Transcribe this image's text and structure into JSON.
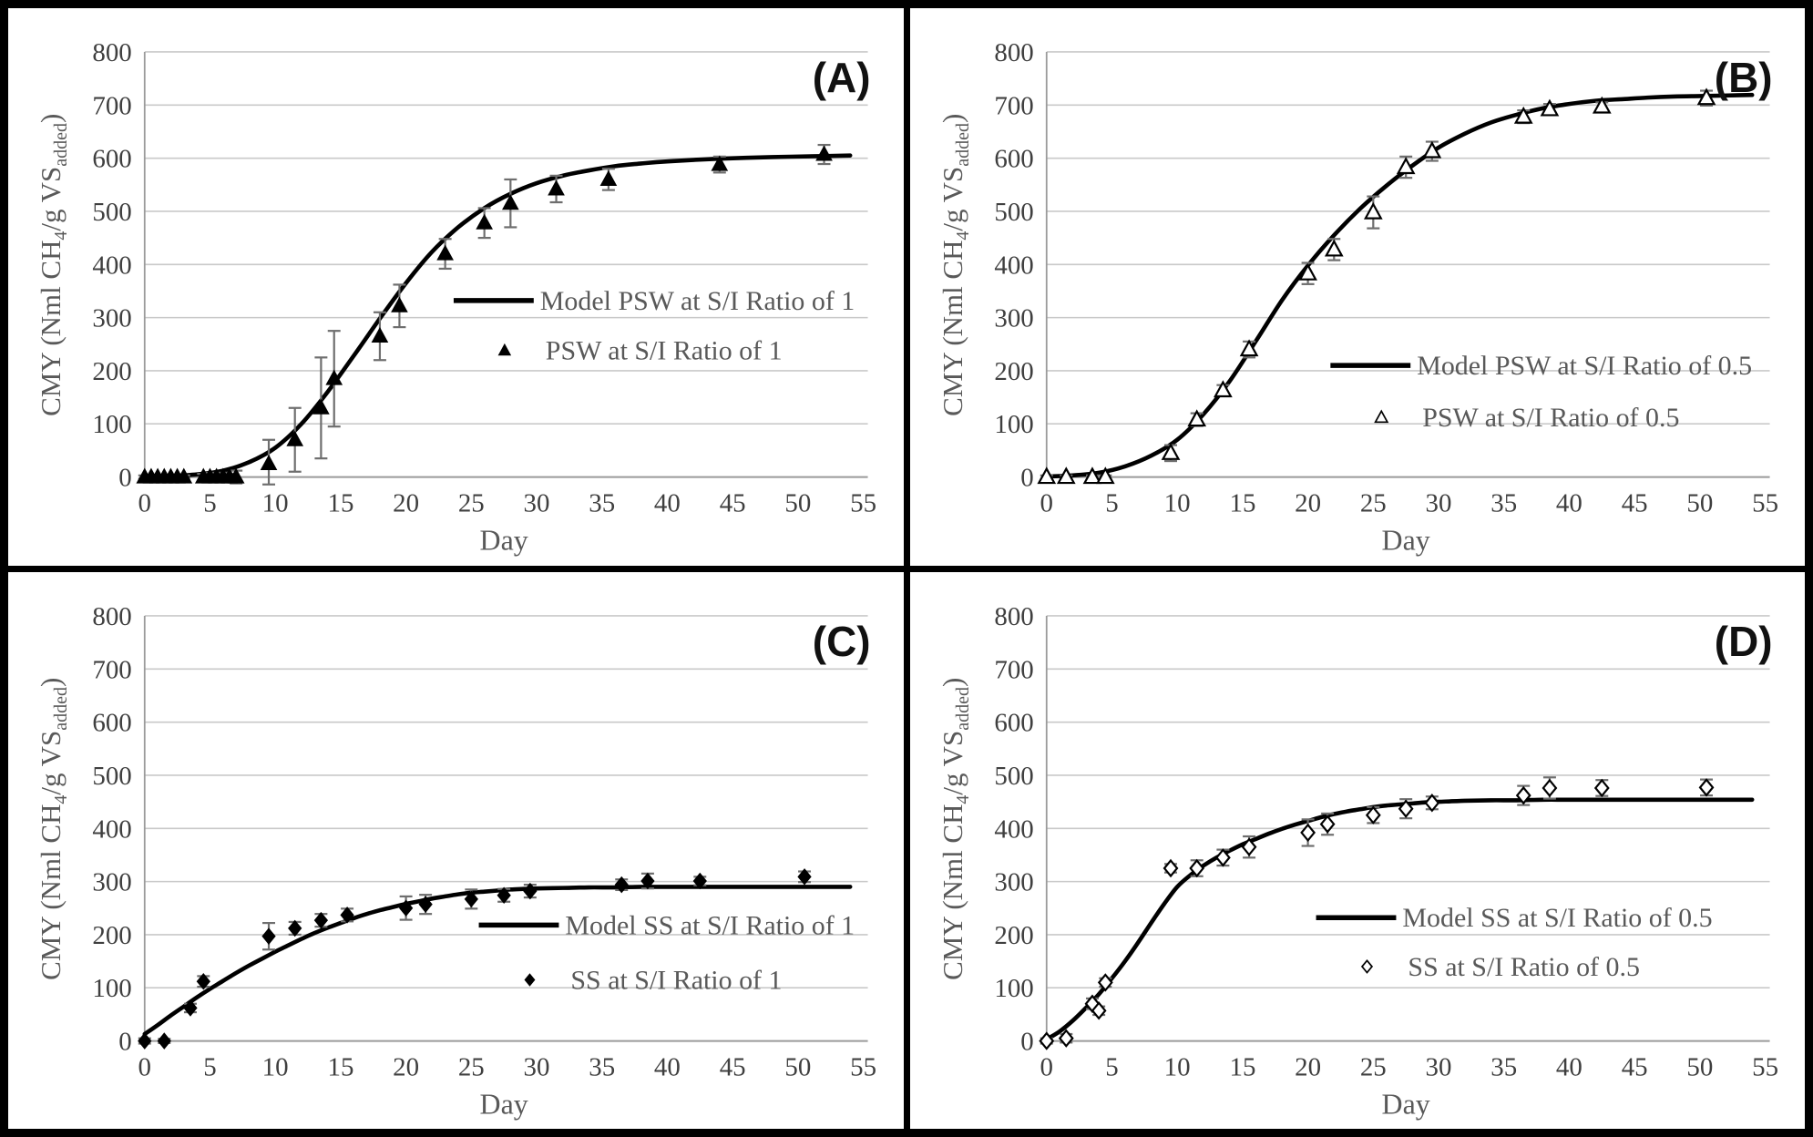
{
  "figure": {
    "background": "#ffffff",
    "border_color": "#000000",
    "axis_color": "#9a9a9a",
    "gridline_color": "#c9c9c9",
    "tick_label_color": "#3f3f3f",
    "legend_text_color": "#595959",
    "errorbar_color": "#6e6e6e",
    "series_color": "#000000",
    "x_ticks": [
      0,
      5,
      10,
      15,
      20,
      25,
      30,
      35,
      40,
      45,
      50,
      55
    ],
    "y_ticks": [
      0,
      100,
      200,
      300,
      400,
      500,
      600,
      700,
      800
    ],
    "xlabel": "Day",
    "ylabel_parts": [
      [
        "CMY (Nml CH",
        0
      ],
      [
        "4",
        1
      ],
      [
        "/g VS",
        0
      ],
      [
        "added",
        1
      ],
      [
        ")",
        0
      ]
    ]
  },
  "chart_data": [
    {
      "type": "line",
      "panel_label": "(A)",
      "title": "PSW at S/I Ratio of 1",
      "xlabel": "Day",
      "ylabel": "CMY (Nml CH4/g VSadded)",
      "xlim": [
        0,
        55
      ],
      "ylim": [
        0,
        800
      ],
      "grid": "horizontal",
      "marker": "triangle-filled",
      "legend": [
        {
          "sample": "line",
          "label": "Model PSW at S/I Ratio of 1"
        },
        {
          "sample": "marker",
          "label": "PSW at S/I Ratio of 1"
        }
      ],
      "legend_pos": {
        "fx": 0.43,
        "v1": 332,
        "v2": 238
      },
      "model_curve": [
        [
          0,
          1
        ],
        [
          2,
          2
        ],
        [
          4,
          5
        ],
        [
          6,
          12
        ],
        [
          8,
          28
        ],
        [
          10,
          55
        ],
        [
          12,
          100
        ],
        [
          14,
          160
        ],
        [
          16,
          228
        ],
        [
          18,
          298
        ],
        [
          20,
          365
        ],
        [
          22,
          424
        ],
        [
          24,
          470
        ],
        [
          26,
          506
        ],
        [
          28,
          533
        ],
        [
          30,
          553
        ],
        [
          32,
          567
        ],
        [
          34,
          577
        ],
        [
          36,
          585
        ],
        [
          38,
          590
        ],
        [
          40,
          594
        ],
        [
          44,
          599
        ],
        [
          48,
          602
        ],
        [
          52,
          604
        ],
        [
          54,
          605
        ]
      ],
      "points": [
        [
          0,
          0,
          3
        ],
        [
          0.5,
          0,
          3
        ],
        [
          1,
          0,
          3
        ],
        [
          1.5,
          0,
          3
        ],
        [
          2,
          0,
          3
        ],
        [
          2.5,
          0,
          3
        ],
        [
          3,
          0,
          3
        ],
        [
          4.5,
          0,
          6
        ],
        [
          5,
          0,
          8
        ],
        [
          5.5,
          0,
          6
        ],
        [
          6,
          0,
          8
        ],
        [
          6.5,
          0,
          6
        ],
        [
          7,
          0,
          12
        ],
        [
          9.5,
          25,
          45
        ],
        [
          11.5,
          70,
          60
        ],
        [
          13.5,
          130,
          95
        ],
        [
          14.5,
          185,
          90
        ],
        [
          18,
          265,
          45
        ],
        [
          19.5,
          322,
          40
        ],
        [
          23,
          420,
          28
        ],
        [
          26,
          478,
          28
        ],
        [
          28,
          515,
          45
        ],
        [
          31.5,
          542,
          25
        ],
        [
          35.5,
          560,
          20
        ],
        [
          44,
          588,
          15
        ],
        [
          52,
          607,
          18
        ]
      ]
    },
    {
      "type": "line",
      "panel_label": "(B)",
      "title": "PSW at S/I Ratio of 0.5",
      "xlabel": "Day",
      "ylabel": "CMY (Nml CH4/g VSadded)",
      "xlim": [
        0,
        55
      ],
      "ylim": [
        0,
        800
      ],
      "grid": "horizontal",
      "marker": "triangle-open",
      "legend": [
        {
          "sample": "line",
          "label": "Model PSW at S/I Ratio of 0.5"
        },
        {
          "sample": "marker",
          "label": "PSW at S/I Ratio of 0.5"
        }
      ],
      "legend_pos": {
        "fx": 0.395,
        "v1": 210,
        "v2": 112
      },
      "model_curve": [
        [
          0,
          1
        ],
        [
          2,
          3
        ],
        [
          4,
          8
        ],
        [
          6,
          20
        ],
        [
          8,
          40
        ],
        [
          10,
          70
        ],
        [
          12,
          118
        ],
        [
          14,
          180
        ],
        [
          16,
          255
        ],
        [
          18,
          332
        ],
        [
          20,
          398
        ],
        [
          22,
          455
        ],
        [
          24,
          505
        ],
        [
          26,
          548
        ],
        [
          28,
          586
        ],
        [
          30,
          620
        ],
        [
          32,
          646
        ],
        [
          34,
          667
        ],
        [
          36,
          682
        ],
        [
          38,
          694
        ],
        [
          40,
          702
        ],
        [
          42,
          708
        ],
        [
          44,
          711
        ],
        [
          46,
          714
        ],
        [
          48,
          716
        ],
        [
          50,
          717
        ],
        [
          54,
          719
        ]
      ],
      "points": [
        [
          0,
          0,
          3
        ],
        [
          1.5,
          0,
          3
        ],
        [
          3.5,
          0,
          3
        ],
        [
          4.5,
          0,
          3
        ],
        [
          9.5,
          45,
          15
        ],
        [
          11.5,
          108,
          12
        ],
        [
          13.5,
          163,
          10
        ],
        [
          15.5,
          240,
          15
        ],
        [
          20,
          383,
          20
        ],
        [
          22,
          428,
          20
        ],
        [
          25,
          498,
          30
        ],
        [
          27.5,
          583,
          20
        ],
        [
          29.5,
          613,
          18
        ],
        [
          36.5,
          678,
          12
        ],
        [
          38.5,
          692,
          10
        ],
        [
          42.5,
          697,
          8
        ],
        [
          50.5,
          713,
          14
        ]
      ]
    },
    {
      "type": "line",
      "panel_label": "(C)",
      "title": "SS at S/I Ratio of 1",
      "xlabel": "Day",
      "ylabel": "CMY (Nml CH4/g VSadded)",
      "xlim": [
        0,
        55
      ],
      "ylim": [
        0,
        800
      ],
      "grid": "horizontal",
      "marker": "diamond-filled",
      "legend": [
        {
          "sample": "line",
          "label": "Model SS at S/I Ratio of 1"
        },
        {
          "sample": "marker",
          "label": "SS at S/I Ratio of 1"
        }
      ],
      "legend_pos": {
        "fx": 0.465,
        "v1": 218,
        "v2": 115
      },
      "model_curve": [
        [
          0,
          13
        ],
        [
          1,
          30
        ],
        [
          2,
          48
        ],
        [
          3,
          65
        ],
        [
          4,
          82
        ],
        [
          5,
          98
        ],
        [
          6,
          113
        ],
        [
          7,
          128
        ],
        [
          8,
          142
        ],
        [
          9,
          155
        ],
        [
          10,
          168
        ],
        [
          11,
          180
        ],
        [
          12,
          192
        ],
        [
          13,
          203
        ],
        [
          14,
          213
        ],
        [
          15,
          222
        ],
        [
          16,
          231
        ],
        [
          17,
          239
        ],
        [
          18,
          246
        ],
        [
          19,
          252
        ],
        [
          20,
          258
        ],
        [
          21,
          263
        ],
        [
          22,
          268
        ],
        [
          23,
          272
        ],
        [
          24,
          276
        ],
        [
          25,
          279
        ],
        [
          26,
          281
        ],
        [
          27,
          283
        ],
        [
          28,
          285
        ],
        [
          29,
          286
        ],
        [
          30,
          287
        ],
        [
          32,
          288
        ],
        [
          34,
          289
        ],
        [
          36,
          289
        ],
        [
          38,
          290
        ],
        [
          40,
          290
        ],
        [
          44,
          290
        ],
        [
          48,
          290
        ],
        [
          50,
          290
        ],
        [
          54,
          290
        ]
      ],
      "points": [
        [
          0,
          0,
          5
        ],
        [
          1.5,
          0,
          4
        ],
        [
          3.5,
          62,
          8
        ],
        [
          4.5,
          112,
          10
        ],
        [
          9.5,
          197,
          25
        ],
        [
          11.5,
          212,
          12
        ],
        [
          13.5,
          227,
          12
        ],
        [
          15.5,
          237,
          12
        ],
        [
          20,
          250,
          22
        ],
        [
          21.5,
          257,
          18
        ],
        [
          25,
          267,
          18
        ],
        [
          27.5,
          274,
          12
        ],
        [
          29.5,
          282,
          12
        ],
        [
          36.5,
          294,
          10
        ],
        [
          38.5,
          301,
          14
        ],
        [
          42.5,
          301,
          8
        ],
        [
          50.5,
          309,
          10
        ]
      ]
    },
    {
      "type": "line",
      "panel_label": "(D)",
      "title": "SS at S/I Ratio of 0.5",
      "xlabel": "Day",
      "ylabel": "CMY (Nml CH4/g VSadded)",
      "xlim": [
        0,
        55
      ],
      "ylim": [
        0,
        800
      ],
      "grid": "horizontal",
      "marker": "diamond-open",
      "legend": [
        {
          "sample": "line",
          "label": "Model SS at S/I Ratio of 0.5"
        },
        {
          "sample": "marker",
          "label": "SS at S/I Ratio of 0.5"
        }
      ],
      "legend_pos": {
        "fx": 0.375,
        "v1": 232,
        "v2": 140
      },
      "model_curve": [
        [
          0,
          3
        ],
        [
          1,
          18
        ],
        [
          2,
          38
        ],
        [
          3,
          62
        ],
        [
          4,
          88
        ],
        [
          5,
          118
        ],
        [
          6,
          150
        ],
        [
          7,
          185
        ],
        [
          8,
          222
        ],
        [
          9,
          258
        ],
        [
          10,
          290
        ],
        [
          11,
          312
        ],
        [
          12,
          330
        ],
        [
          13,
          345
        ],
        [
          14,
          358
        ],
        [
          15,
          370
        ],
        [
          16,
          380
        ],
        [
          17,
          390
        ],
        [
          18,
          399
        ],
        [
          19,
          407
        ],
        [
          20,
          414
        ],
        [
          21,
          421
        ],
        [
          22,
          427
        ],
        [
          23,
          432
        ],
        [
          24,
          436
        ],
        [
          25,
          440
        ],
        [
          26,
          443
        ],
        [
          27,
          445
        ],
        [
          28,
          447
        ],
        [
          29,
          449
        ],
        [
          30,
          450
        ],
        [
          32,
          452
        ],
        [
          34,
          453
        ],
        [
          36,
          453
        ],
        [
          38,
          454
        ],
        [
          40,
          454
        ],
        [
          44,
          454
        ],
        [
          48,
          454
        ],
        [
          50,
          454
        ],
        [
          54,
          454
        ]
      ],
      "points": [
        [
          0,
          0,
          5
        ],
        [
          1.5,
          5,
          8
        ],
        [
          3.5,
          70,
          10
        ],
        [
          4,
          57,
          8
        ],
        [
          4.5,
          110,
          8
        ],
        [
          9.5,
          325,
          8
        ],
        [
          11.5,
          325,
          15
        ],
        [
          13.5,
          345,
          15
        ],
        [
          15.5,
          365,
          20
        ],
        [
          20,
          392,
          25
        ],
        [
          21.5,
          408,
          20
        ],
        [
          25,
          425,
          15
        ],
        [
          27.5,
          437,
          18
        ],
        [
          29.5,
          448,
          12
        ],
        [
          36.5,
          462,
          18
        ],
        [
          38.5,
          476,
          20
        ],
        [
          42.5,
          476,
          15
        ],
        [
          50.5,
          477,
          15
        ]
      ]
    }
  ]
}
